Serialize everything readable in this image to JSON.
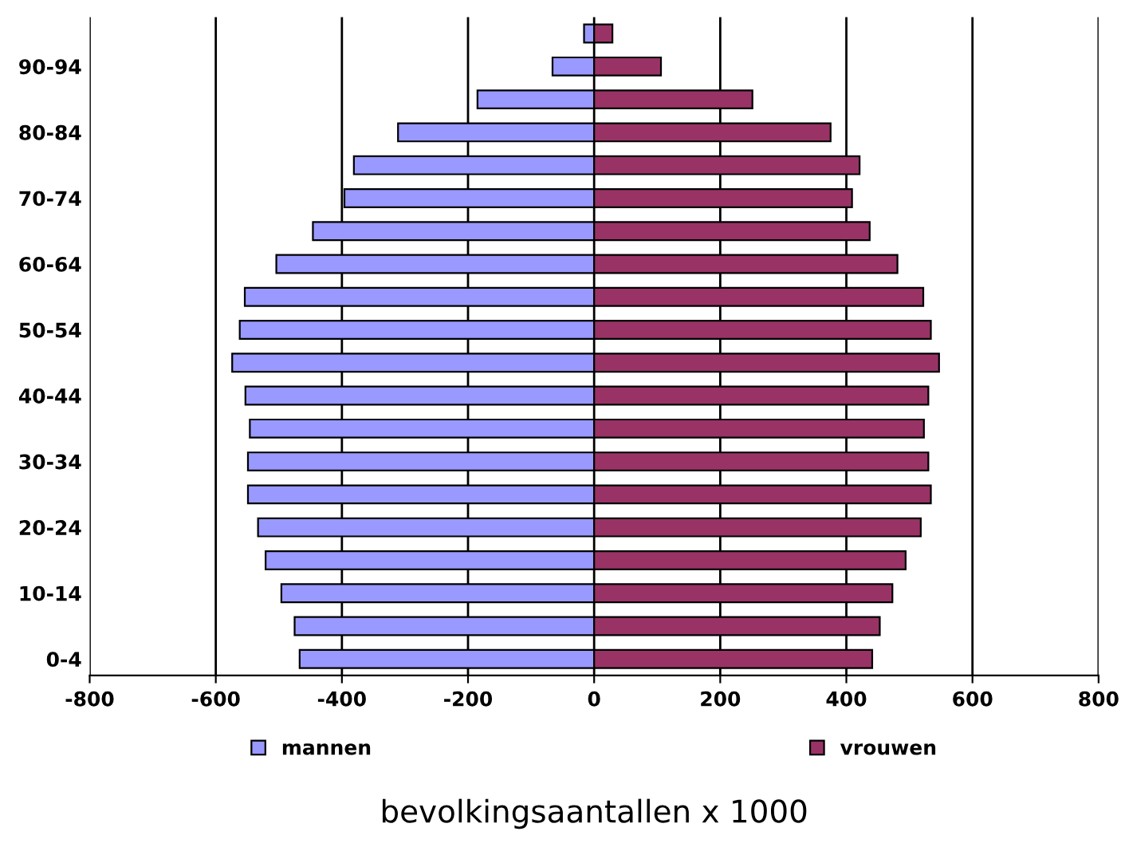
{
  "chart_data": {
    "type": "bar",
    "orientation": "horizontal",
    "xlabel": "bevolkingsaantallen x 1000",
    "categories": [
      null,
      "90-94",
      null,
      "80-84",
      null,
      "70-74",
      null,
      "60-64",
      null,
      "50-54",
      null,
      "40-44",
      null,
      "30-34",
      null,
      "20-24",
      null,
      "10-14",
      null,
      "0-4"
    ],
    "series": [
      {
        "name": "mannen",
        "color": "#9999ff",
        "values": [
          -16,
          -66,
          -185,
          -311,
          -381,
          -396,
          -446,
          -504,
          -554,
          -562,
          -574,
          -553,
          -546,
          -549,
          -549,
          -533,
          -521,
          -496,
          -475,
          -467
        ]
      },
      {
        "name": "vrouwen",
        "color": "#993366",
        "values": [
          29,
          106,
          251,
          375,
          421,
          409,
          437,
          481,
          522,
          534,
          547,
          530,
          523,
          530,
          534,
          518,
          494,
          473,
          453,
          441
        ]
      }
    ],
    "xlim": [
      -800,
      800
    ],
    "xticks": [
      -800,
      -600,
      -400,
      -200,
      0,
      200,
      400,
      600,
      800
    ],
    "grid": "x",
    "legend": "bottom",
    "stacked": true
  }
}
